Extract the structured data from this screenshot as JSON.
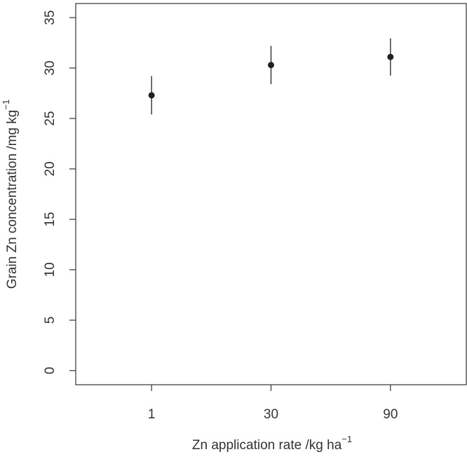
{
  "chart_data": {
    "type": "errorbar",
    "xlabel": {
      "text": "Zn application rate /kg ha",
      "superscript": "−1"
    },
    "ylabel": {
      "text": "Grain Zn concentration /mg kg",
      "superscript": "−1"
    },
    "categories": [
      "1",
      "30",
      "90"
    ],
    "values": [
      27.3,
      30.3,
      31.1
    ],
    "errors": [
      1.9,
      1.9,
      1.85
    ],
    "color": "#222222",
    "ylim": [
      -1.4,
      36.4
    ],
    "yticks": [
      0,
      5,
      10,
      15,
      20,
      25,
      30,
      35
    ]
  }
}
